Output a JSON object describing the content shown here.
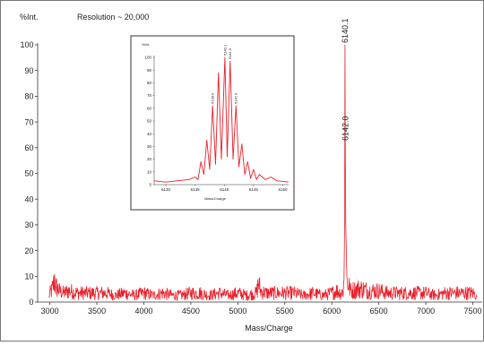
{
  "colors": {
    "trace": "#e8202a",
    "axis": "#333333",
    "frame": "#555555"
  },
  "chart_data": [
    {
      "type": "line",
      "role": "main",
      "title": "",
      "annotation": "Resolution ~ 20,000",
      "xlabel": "Mass/Charge",
      "ylabel": "%Int.",
      "xlim": [
        2870,
        7600
      ],
      "ylim": [
        0,
        100
      ],
      "xticks": [
        3000,
        3500,
        4000,
        4500,
        5000,
        5500,
        6000,
        6500,
        7000,
        7500
      ],
      "yticks": [
        0,
        10,
        20,
        30,
        40,
        50,
        60,
        70,
        80,
        90,
        100
      ],
      "grid": false,
      "peak_labels": [
        {
          "text": "6140.1",
          "x": 6140.1,
          "y": 100
        },
        {
          "text": "6142.0",
          "x": 6142.0,
          "y": 62
        }
      ],
      "series": [
        {
          "x": [
            2990,
            3000,
            3020,
            3040,
            3050,
            3060,
            3080,
            3100,
            3150,
            3200,
            3300,
            3400,
            3500,
            3600,
            3700,
            3800,
            3900,
            4000,
            4100,
            4200,
            4300,
            4400,
            4500,
            4600,
            4700,
            4800,
            4900,
            5000,
            5100,
            5200,
            5220,
            5240,
            5300,
            5400,
            5500,
            5600,
            5700,
            5800,
            5900,
            6000,
            6050,
            6100,
            6120,
            6130,
            6136,
            6140.1,
            6143,
            6148,
            6160,
            6200,
            6300,
            6400,
            6500,
            6600,
            6700,
            6800,
            6900,
            7000,
            7100,
            7200,
            7300,
            7400,
            7500,
            7540
          ],
          "y": [
            2,
            4,
            5,
            8,
            11,
            7,
            6,
            5,
            4,
            5,
            4,
            4,
            4,
            4,
            3,
            4,
            3,
            4,
            3,
            4,
            3,
            3,
            4,
            4,
            3,
            4,
            3,
            4,
            3,
            4,
            9,
            5,
            4,
            4,
            4,
            4,
            3,
            4,
            3,
            4,
            5,
            4,
            5,
            9,
            30,
            100,
            62,
            30,
            10,
            5,
            6,
            5,
            5,
            4,
            4,
            4,
            4,
            4,
            3,
            4,
            4,
            4,
            4,
            3
          ]
        }
      ]
    },
    {
      "type": "line",
      "role": "inset",
      "title": "",
      "xlabel": "Mass/Charge",
      "ylabel": "%Int.",
      "xlim": [
        6128,
        6151
      ],
      "ylim": [
        0,
        100
      ],
      "xticks": [
        6130,
        6135,
        6140,
        6145,
        6150
      ],
      "yticks": [
        0,
        10,
        20,
        30,
        40,
        50,
        60,
        70,
        80,
        90,
        100
      ],
      "grid": false,
      "peak_labels": [
        {
          "text": "6138.0",
          "x": 6138.0,
          "y": 62
        },
        {
          "text": "6140.1",
          "x": 6140.1,
          "y": 100
        },
        {
          "text": "6141.0",
          "x": 6141.0,
          "y": 97
        },
        {
          "text": "6142.0",
          "x": 6142.0,
          "y": 62
        }
      ],
      "series": [
        {
          "x": [
            6128,
            6130,
            6132,
            6134,
            6135,
            6135.5,
            6136,
            6136.5,
            6137,
            6137.5,
            6138,
            6138.5,
            6139,
            6139.5,
            6140.1,
            6140.5,
            6141,
            6141.5,
            6142,
            6142.5,
            6143,
            6143.5,
            6144,
            6144.5,
            6145,
            6145.5,
            6146,
            6147,
            6148,
            6149,
            6151
          ],
          "y": [
            3,
            2,
            3,
            4,
            6,
            4,
            18,
            8,
            35,
            12,
            62,
            16,
            88,
            20,
            100,
            22,
            97,
            20,
            62,
            14,
            32,
            8,
            18,
            5,
            12,
            4,
            8,
            4,
            6,
            3,
            2
          ]
        }
      ]
    }
  ]
}
